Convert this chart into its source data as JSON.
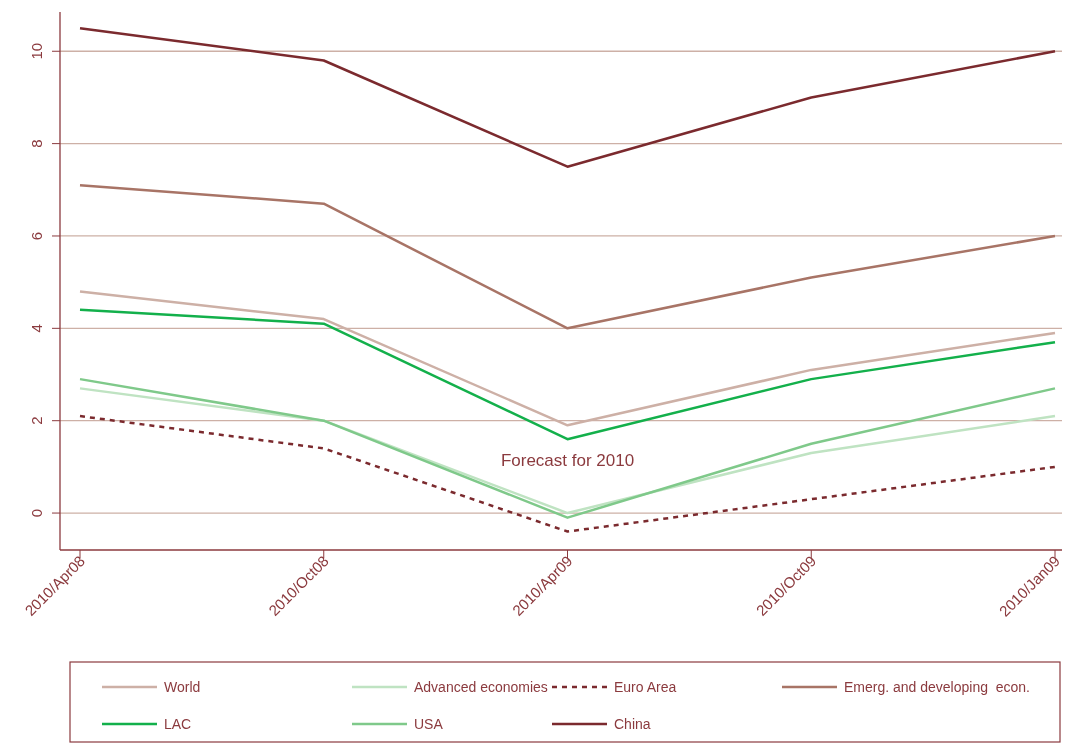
{
  "chart_data": {
    "type": "line",
    "categories": [
      "2010/Apr08",
      "2010/Oct08",
      "2010/Apr09",
      "2010/Oct09",
      "2010/Jan09"
    ],
    "series": [
      {
        "name": "World",
        "color": "#cdb0a6",
        "values": [
          4.8,
          4.2,
          1.9,
          3.1,
          3.9
        ]
      },
      {
        "name": "Advanced economies",
        "color": "#bfe3c2",
        "values": [
          2.7,
          2.0,
          0.0,
          1.3,
          2.1
        ]
      },
      {
        "name": "Euro Area",
        "color": "#7b2a2e",
        "values": [
          2.1,
          1.4,
          -0.4,
          0.3,
          1.0
        ],
        "line_style": "dashed"
      },
      {
        "name": "Emerg. and developing  econ.",
        "color": "#a87466",
        "values": [
          7.1,
          6.7,
          4.0,
          5.1,
          6.0
        ]
      },
      {
        "name": "LAC",
        "color": "#13b04b",
        "values": [
          4.4,
          4.1,
          1.6,
          2.9,
          3.7
        ]
      },
      {
        "name": "USA",
        "color": "#7fc98a",
        "values": [
          2.9,
          2.0,
          -0.1,
          1.5,
          2.7
        ]
      },
      {
        "name": "China",
        "color": "#7b2a2e",
        "values": [
          10.5,
          9.8,
          7.5,
          9.0,
          10.0
        ]
      }
    ],
    "ylim": [
      -0.8,
      10.85
    ],
    "yticks": [
      0,
      2,
      4,
      6,
      8,
      10
    ],
    "grid": "y",
    "legend": "bottom",
    "line_style": "solid",
    "annotations": [
      "Forecast for 2010"
    ]
  }
}
